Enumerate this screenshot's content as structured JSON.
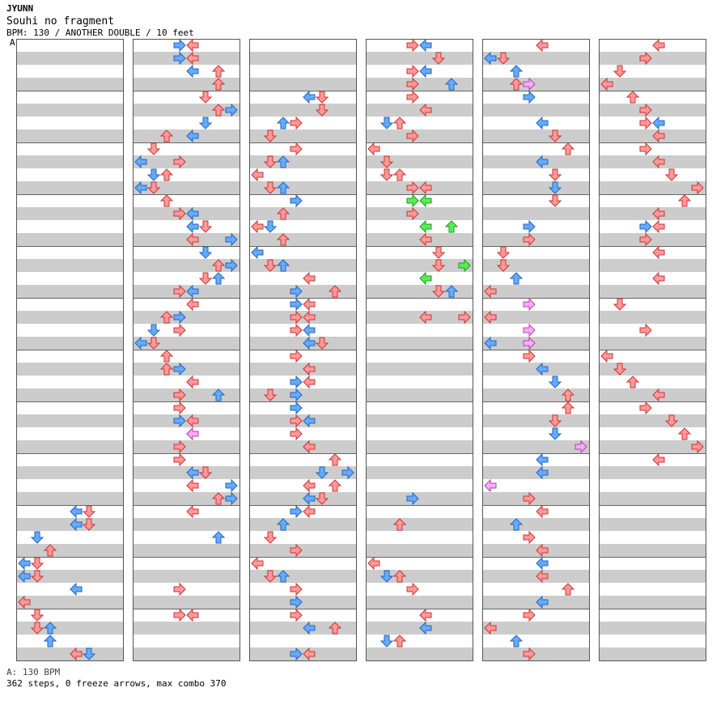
{
  "header": {
    "artist": "JYUNN",
    "song_title": "Souhi no fragment",
    "meta_line": "BPM: 130 / ANOTHER DOUBLE / 10 feet",
    "section_marker": "A"
  },
  "footer": {
    "bpm_line": "A: 130 BPM",
    "stats_line": "362 steps, 0 freeze arrows, max combo 370"
  },
  "colors": {
    "stripe": "#cccccc",
    "left_player_arrow": "#ff9999",
    "right_player_arrow": "#66aaff",
    "pink_arrow": "#ffaaff",
    "green_arrow": "#55ee55",
    "measure_line": "#000000"
  },
  "chart": {
    "columns": 6,
    "measures_per_column": 12,
    "lanes": 8,
    "notes": [
      [
        0,
        9,
        5,
        "r"
      ],
      [
        0,
        9,
        4,
        "b"
      ],
      [
        0,
        9.25,
        5,
        "r"
      ],
      [
        0,
        9.25,
        4,
        "b"
      ],
      [
        0,
        9.5,
        1,
        "b"
      ],
      [
        0,
        9.75,
        2,
        "r"
      ],
      [
        0,
        10,
        0,
        "b"
      ],
      [
        0,
        10,
        1,
        "r"
      ],
      [
        0,
        10.25,
        0,
        "b"
      ],
      [
        0,
        10.25,
        1,
        "r"
      ],
      [
        0,
        10.5,
        4,
        "b"
      ],
      [
        0,
        10.75,
        0,
        "r"
      ],
      [
        0,
        11,
        1,
        "r"
      ],
      [
        0,
        11.25,
        1,
        "r"
      ],
      [
        0,
        11.25,
        2,
        "b"
      ],
      [
        0,
        11.5,
        2,
        "b"
      ],
      [
        0,
        11.75,
        4,
        "r"
      ],
      [
        0,
        11.75,
        5,
        "b"
      ],
      [
        1,
        0,
        4,
        "r"
      ],
      [
        1,
        0,
        3,
        "b"
      ],
      [
        1,
        0.25,
        4,
        "r"
      ],
      [
        1,
        0.25,
        3,
        "b"
      ],
      [
        1,
        0.5,
        4,
        "b"
      ],
      [
        1,
        0.5,
        6,
        "r"
      ],
      [
        1,
        0.75,
        6,
        "r"
      ],
      [
        1,
        1,
        5,
        "r"
      ],
      [
        1,
        1.25,
        6,
        "r"
      ],
      [
        1,
        1.25,
        7,
        "b"
      ],
      [
        1,
        1.5,
        5,
        "b"
      ],
      [
        1,
        1.75,
        2,
        "r"
      ],
      [
        1,
        1.75,
        4,
        "b"
      ],
      [
        1,
        2,
        1,
        "r"
      ],
      [
        1,
        2.25,
        0,
        "b"
      ],
      [
        1,
        2.25,
        3,
        "r"
      ],
      [
        1,
        2.5,
        1,
        "b"
      ],
      [
        1,
        2.5,
        2,
        "r"
      ],
      [
        1,
        2.75,
        0,
        "b"
      ],
      [
        1,
        2.75,
        1,
        "r"
      ],
      [
        1,
        3,
        2,
        "r"
      ],
      [
        1,
        3.25,
        3,
        "r"
      ],
      [
        1,
        3.25,
        4,
        "b"
      ],
      [
        1,
        3.5,
        4,
        "b"
      ],
      [
        1,
        3.5,
        5,
        "r"
      ],
      [
        1,
        3.75,
        4,
        "r"
      ],
      [
        1,
        3.75,
        7,
        "b"
      ],
      [
        1,
        4,
        5,
        "b"
      ],
      [
        1,
        4.25,
        6,
        "r"
      ],
      [
        1,
        4.25,
        7,
        "b"
      ],
      [
        1,
        4.5,
        5,
        "r"
      ],
      [
        1,
        4.5,
        6,
        "b"
      ],
      [
        1,
        4.75,
        3,
        "r"
      ],
      [
        1,
        4.75,
        4,
        "b"
      ],
      [
        1,
        5,
        4,
        "r"
      ],
      [
        1,
        5.25,
        2,
        "r"
      ],
      [
        1,
        5.25,
        3,
        "b"
      ],
      [
        1,
        5.5,
        1,
        "b"
      ],
      [
        1,
        5.5,
        3,
        "r"
      ],
      [
        1,
        5.75,
        0,
        "b"
      ],
      [
        1,
        5.75,
        1,
        "r"
      ],
      [
        1,
        6,
        2,
        "r"
      ],
      [
        1,
        6.25,
        2,
        "r"
      ],
      [
        1,
        6.25,
        3,
        "b"
      ],
      [
        1,
        6.5,
        4,
        "b"
      ],
      [
        1,
        6.5,
        4,
        "r"
      ],
      [
        1,
        6.75,
        3,
        "r"
      ],
      [
        1,
        6.75,
        6,
        "b"
      ],
      [
        1,
        7,
        3,
        "r"
      ],
      [
        1,
        7.25,
        3,
        "b"
      ],
      [
        1,
        7.25,
        4,
        "r"
      ],
      [
        1,
        7.5,
        4,
        "b"
      ],
      [
        1,
        7.5,
        4,
        "p"
      ],
      [
        1,
        7.75,
        3,
        "r"
      ],
      [
        1,
        8,
        3,
        "r"
      ],
      [
        1,
        8.25,
        4,
        "b"
      ],
      [
        1,
        8.25,
        5,
        "r"
      ],
      [
        1,
        8.5,
        4,
        "r"
      ],
      [
        1,
        8.5,
        7,
        "b"
      ],
      [
        1,
        8.75,
        6,
        "r"
      ],
      [
        1,
        8.75,
        7,
        "b"
      ],
      [
        1,
        9,
        4,
        "r"
      ],
      [
        1,
        9.5,
        6,
        "b"
      ],
      [
        1,
        10.5,
        3,
        "r"
      ],
      [
        1,
        11,
        3,
        "r"
      ],
      [
        1,
        11,
        4,
        "r"
      ],
      [
        2,
        1,
        5,
        "r"
      ],
      [
        2,
        1,
        4,
        "b"
      ],
      [
        2,
        1.25,
        5,
        "r"
      ],
      [
        2,
        1.5,
        2,
        "b"
      ],
      [
        2,
        1.5,
        3,
        "r"
      ],
      [
        2,
        1.75,
        1,
        "r"
      ],
      [
        2,
        2,
        3,
        "r"
      ],
      [
        2,
        2.25,
        2,
        "b"
      ],
      [
        2,
        2.25,
        1,
        "r"
      ],
      [
        2,
        2.5,
        0,
        "r"
      ],
      [
        2,
        2.75,
        2,
        "b"
      ],
      [
        2,
        2.75,
        1,
        "r"
      ],
      [
        2,
        3,
        3,
        "b"
      ],
      [
        2,
        3.25,
        2,
        "r"
      ],
      [
        2,
        3.5,
        0,
        "r"
      ],
      [
        2,
        3.5,
        1,
        "b"
      ],
      [
        2,
        3.75,
        2,
        "r"
      ],
      [
        2,
        4,
        0,
        "b"
      ],
      [
        2,
        4.25,
        1,
        "r"
      ],
      [
        2,
        4.25,
        2,
        "b"
      ],
      [
        2,
        4.5,
        4,
        "r"
      ],
      [
        2,
        4.75,
        3,
        "b"
      ],
      [
        2,
        4.75,
        6,
        "r"
      ],
      [
        2,
        5,
        3,
        "b"
      ],
      [
        2,
        5,
        4,
        "r"
      ],
      [
        2,
        5.25,
        3,
        "r"
      ],
      [
        2,
        5.25,
        4,
        "r"
      ],
      [
        2,
        5.5,
        3,
        "r"
      ],
      [
        2,
        5.5,
        4,
        "b"
      ],
      [
        2,
        5.75,
        4,
        "b"
      ],
      [
        2,
        5.75,
        5,
        "r"
      ],
      [
        2,
        6,
        3,
        "r"
      ],
      [
        2,
        6.25,
        4,
        "b"
      ],
      [
        2,
        6.25,
        4,
        "r"
      ],
      [
        2,
        6.5,
        3,
        "b"
      ],
      [
        2,
        6.5,
        4,
        "r"
      ],
      [
        2,
        6.75,
        1,
        "r"
      ],
      [
        2,
        6.75,
        3,
        "b"
      ],
      [
        2,
        7,
        3,
        "b"
      ],
      [
        2,
        7.25,
        4,
        "b"
      ],
      [
        2,
        7.25,
        3,
        "r"
      ],
      [
        2,
        7.5,
        3,
        "r"
      ],
      [
        2,
        7.75,
        4,
        "b"
      ],
      [
        2,
        7.75,
        4,
        "r"
      ],
      [
        2,
        8,
        6,
        "r"
      ],
      [
        2,
        8.25,
        5,
        "b"
      ],
      [
        2,
        8.25,
        7,
        "b"
      ],
      [
        2,
        8.5,
        4,
        "r"
      ],
      [
        2,
        8.5,
        6,
        "r"
      ],
      [
        2,
        8.75,
        4,
        "b"
      ],
      [
        2,
        8.75,
        5,
        "r"
      ],
      [
        2,
        9,
        3,
        "b"
      ],
      [
        2,
        9,
        4,
        "r"
      ],
      [
        2,
        9.25,
        2,
        "b"
      ],
      [
        2,
        9.5,
        1,
        "r"
      ],
      [
        2,
        9.75,
        3,
        "r"
      ],
      [
        2,
        10,
        0,
        "r"
      ],
      [
        2,
        10.25,
        1,
        "r"
      ],
      [
        2,
        10.25,
        2,
        "b"
      ],
      [
        2,
        10.5,
        3,
        "r"
      ],
      [
        2,
        10.75,
        3,
        "b"
      ],
      [
        2,
        11,
        3,
        "r"
      ],
      [
        2,
        11.25,
        4,
        "b"
      ],
      [
        2,
        11.25,
        6,
        "r"
      ],
      [
        2,
        11.75,
        3,
        "b"
      ],
      [
        2,
        11.75,
        4,
        "r"
      ],
      [
        3,
        0,
        3,
        "r"
      ],
      [
        3,
        0,
        4,
        "b"
      ],
      [
        3,
        0.25,
        5,
        "r"
      ],
      [
        3,
        0.5,
        3,
        "r"
      ],
      [
        3,
        0.5,
        4,
        "b"
      ],
      [
        3,
        0.75,
        3,
        "r"
      ],
      [
        3,
        0.75,
        6,
        "b"
      ],
      [
        3,
        1,
        3,
        "r"
      ],
      [
        3,
        1.25,
        4,
        "r"
      ],
      [
        3,
        1.5,
        1,
        "b"
      ],
      [
        3,
        1.5,
        2,
        "r"
      ],
      [
        3,
        1.75,
        3,
        "r"
      ],
      [
        3,
        2,
        0,
        "r"
      ],
      [
        3,
        2.25,
        1,
        "r"
      ],
      [
        3,
        2.5,
        1,
        "r"
      ],
      [
        3,
        2.5,
        2,
        "r"
      ],
      [
        3,
        2.75,
        3,
        "r"
      ],
      [
        3,
        2.75,
        4,
        "r"
      ],
      [
        3,
        3,
        3,
        "g"
      ],
      [
        3,
        3,
        4,
        "g"
      ],
      [
        3,
        3.25,
        3,
        "r"
      ],
      [
        3,
        3.5,
        4,
        "g"
      ],
      [
        3,
        3.5,
        6,
        "g"
      ],
      [
        3,
        3.75,
        4,
        "r"
      ],
      [
        3,
        4,
        5,
        "r"
      ],
      [
        3,
        4.25,
        5,
        "r"
      ],
      [
        3,
        4.25,
        7,
        "g"
      ],
      [
        3,
        4.5,
        4,
        "g"
      ],
      [
        3,
        4.75,
        6,
        "b"
      ],
      [
        3,
        4.75,
        5,
        "r"
      ],
      [
        3,
        5.25,
        4,
        "r"
      ],
      [
        3,
        5.25,
        7,
        "r"
      ],
      [
        3,
        8.75,
        3,
        "b"
      ],
      [
        3,
        9.25,
        2,
        "r"
      ],
      [
        3,
        10,
        0,
        "r"
      ],
      [
        3,
        10.25,
        1,
        "b"
      ],
      [
        3,
        10.25,
        2,
        "r"
      ],
      [
        3,
        10.5,
        3,
        "r"
      ],
      [
        3,
        11,
        4,
        "r"
      ],
      [
        3,
        11.25,
        4,
        "b"
      ],
      [
        3,
        11.5,
        1,
        "b"
      ],
      [
        3,
        11.5,
        2,
        "r"
      ],
      [
        4,
        0,
        4,
        "r"
      ],
      [
        4,
        0.25,
        0,
        "b"
      ],
      [
        4,
        0.25,
        1,
        "r"
      ],
      [
        4,
        0.5,
        2,
        "b"
      ],
      [
        4,
        0.75,
        2,
        "r"
      ],
      [
        4,
        0.75,
        3,
        "p"
      ],
      [
        4,
        1,
        3,
        "b"
      ],
      [
        4,
        1.5,
        4,
        "b"
      ],
      [
        4,
        1.75,
        5,
        "r"
      ],
      [
        4,
        2,
        6,
        "r"
      ],
      [
        4,
        2.25,
        4,
        "b"
      ],
      [
        4,
        2.5,
        5,
        "r"
      ],
      [
        4,
        2.75,
        5,
        "b"
      ],
      [
        4,
        3,
        5,
        "r"
      ],
      [
        4,
        3.5,
        3,
        "b"
      ],
      [
        4,
        3.75,
        3,
        "r"
      ],
      [
        4,
        4,
        1,
        "r"
      ],
      [
        4,
        4.25,
        1,
        "r"
      ],
      [
        4,
        4.5,
        2,
        "b"
      ],
      [
        4,
        4.75,
        0,
        "r"
      ],
      [
        4,
        5,
        3,
        "p"
      ],
      [
        4,
        5.25,
        0,
        "r"
      ],
      [
        4,
        5.5,
        3,
        "p"
      ],
      [
        4,
        5.75,
        0,
        "b"
      ],
      [
        4,
        5.75,
        3,
        "p"
      ],
      [
        4,
        6,
        3,
        "r"
      ],
      [
        4,
        6.25,
        4,
        "b"
      ],
      [
        4,
        6.5,
        5,
        "b"
      ],
      [
        4,
        6.75,
        6,
        "r"
      ],
      [
        4,
        7,
        6,
        "r"
      ],
      [
        4,
        7.25,
        5,
        "r"
      ],
      [
        4,
        7.5,
        5,
        "b"
      ],
      [
        4,
        7.75,
        7,
        "p"
      ],
      [
        4,
        8,
        4,
        "b"
      ],
      [
        4,
        8.25,
        4,
        "b"
      ],
      [
        4,
        8.5,
        0,
        "p"
      ],
      [
        4,
        8.75,
        3,
        "r"
      ],
      [
        4,
        9,
        4,
        "r"
      ],
      [
        4,
        9.25,
        2,
        "b"
      ],
      [
        4,
        9.5,
        3,
        "r"
      ],
      [
        4,
        9.75,
        4,
        "r"
      ],
      [
        4,
        10,
        4,
        "b"
      ],
      [
        4,
        10.25,
        4,
        "r"
      ],
      [
        4,
        10.5,
        6,
        "r"
      ],
      [
        4,
        10.75,
        4,
        "b"
      ],
      [
        4,
        11,
        3,
        "r"
      ],
      [
        4,
        11.25,
        0,
        "r"
      ],
      [
        4,
        11.5,
        2,
        "b"
      ],
      [
        4,
        11.75,
        3,
        "r"
      ],
      [
        5,
        0,
        4,
        "r"
      ],
      [
        5,
        0.25,
        3,
        "r"
      ],
      [
        5,
        0.5,
        1,
        "r"
      ],
      [
        5,
        0.75,
        0,
        "r"
      ],
      [
        5,
        1,
        2,
        "r"
      ],
      [
        5,
        1.25,
        3,
        "r"
      ],
      [
        5,
        1.5,
        3,
        "r"
      ],
      [
        5,
        1.5,
        4,
        "b"
      ],
      [
        5,
        1.75,
        4,
        "r"
      ],
      [
        5,
        2,
        3,
        "r"
      ],
      [
        5,
        2.25,
        4,
        "r"
      ],
      [
        5,
        2.5,
        5,
        "r"
      ],
      [
        5,
        2.75,
        7,
        "r"
      ],
      [
        5,
        3,
        6,
        "r"
      ],
      [
        5,
        3.25,
        4,
        "r"
      ],
      [
        5,
        3.5,
        3,
        "b"
      ],
      [
        5,
        3.5,
        4,
        "r"
      ],
      [
        5,
        3.75,
        3,
        "r"
      ],
      [
        5,
        4,
        4,
        "r"
      ],
      [
        5,
        4.5,
        4,
        "r"
      ],
      [
        5,
        5,
        1,
        "r"
      ],
      [
        5,
        5.5,
        3,
        "r"
      ],
      [
        5,
        6,
        0,
        "r"
      ],
      [
        5,
        6.25,
        1,
        "r"
      ],
      [
        5,
        6.5,
        2,
        "r"
      ],
      [
        5,
        6.75,
        4,
        "r"
      ],
      [
        5,
        7,
        3,
        "r"
      ],
      [
        5,
        7.25,
        5,
        "r"
      ],
      [
        5,
        7.5,
        6,
        "r"
      ],
      [
        5,
        7.75,
        7,
        "r"
      ],
      [
        5,
        8,
        4,
        "r"
      ]
    ]
  }
}
